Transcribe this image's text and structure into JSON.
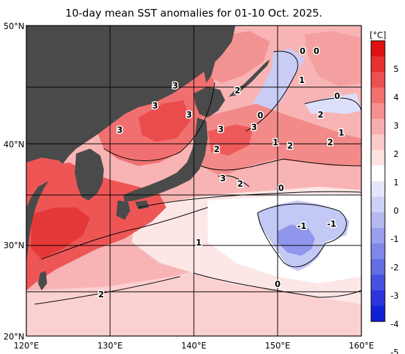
{
  "title": "10-day mean SST anomalies for 01-10 Oct. 2025.",
  "colorbar": {
    "unit": "[°C]",
    "ticks": [
      "5",
      "4",
      "3",
      "2",
      "1",
      "0",
      "-1",
      "-2",
      "-3",
      "-4",
      "-5"
    ],
    "bands": [
      "#e01010",
      "#e83030",
      "#ee5050",
      "#f27070",
      "#f59090",
      "#f8aeae",
      "#fbcaca",
      "#fde2e2",
      "#ffffff",
      "#e4e6fb",
      "#cdd1f7",
      "#b4b9f2",
      "#9aa0ee",
      "#7f87e9",
      "#636de4",
      "#4651df",
      "#2b35db",
      "#1020d8"
    ]
  },
  "axes": {
    "lon_labels": [
      "120°E",
      "130°E",
      "140°E",
      "150°E",
      "160°E"
    ],
    "lat_labels": [
      "50°N",
      "40°N",
      "30°N",
      "20°N"
    ]
  },
  "contour_labels": [
    "0",
    "0",
    "1",
    "0",
    "3",
    "2",
    "3",
    "3",
    "3",
    "0",
    "3",
    "3",
    "1",
    "2",
    "2",
    "1",
    "2",
    "2",
    "3",
    "2",
    "0",
    "-1",
    "-1",
    "1",
    "0",
    "2"
  ],
  "colors": {
    "land": "#4a4a4a",
    "grid": "#000000"
  }
}
